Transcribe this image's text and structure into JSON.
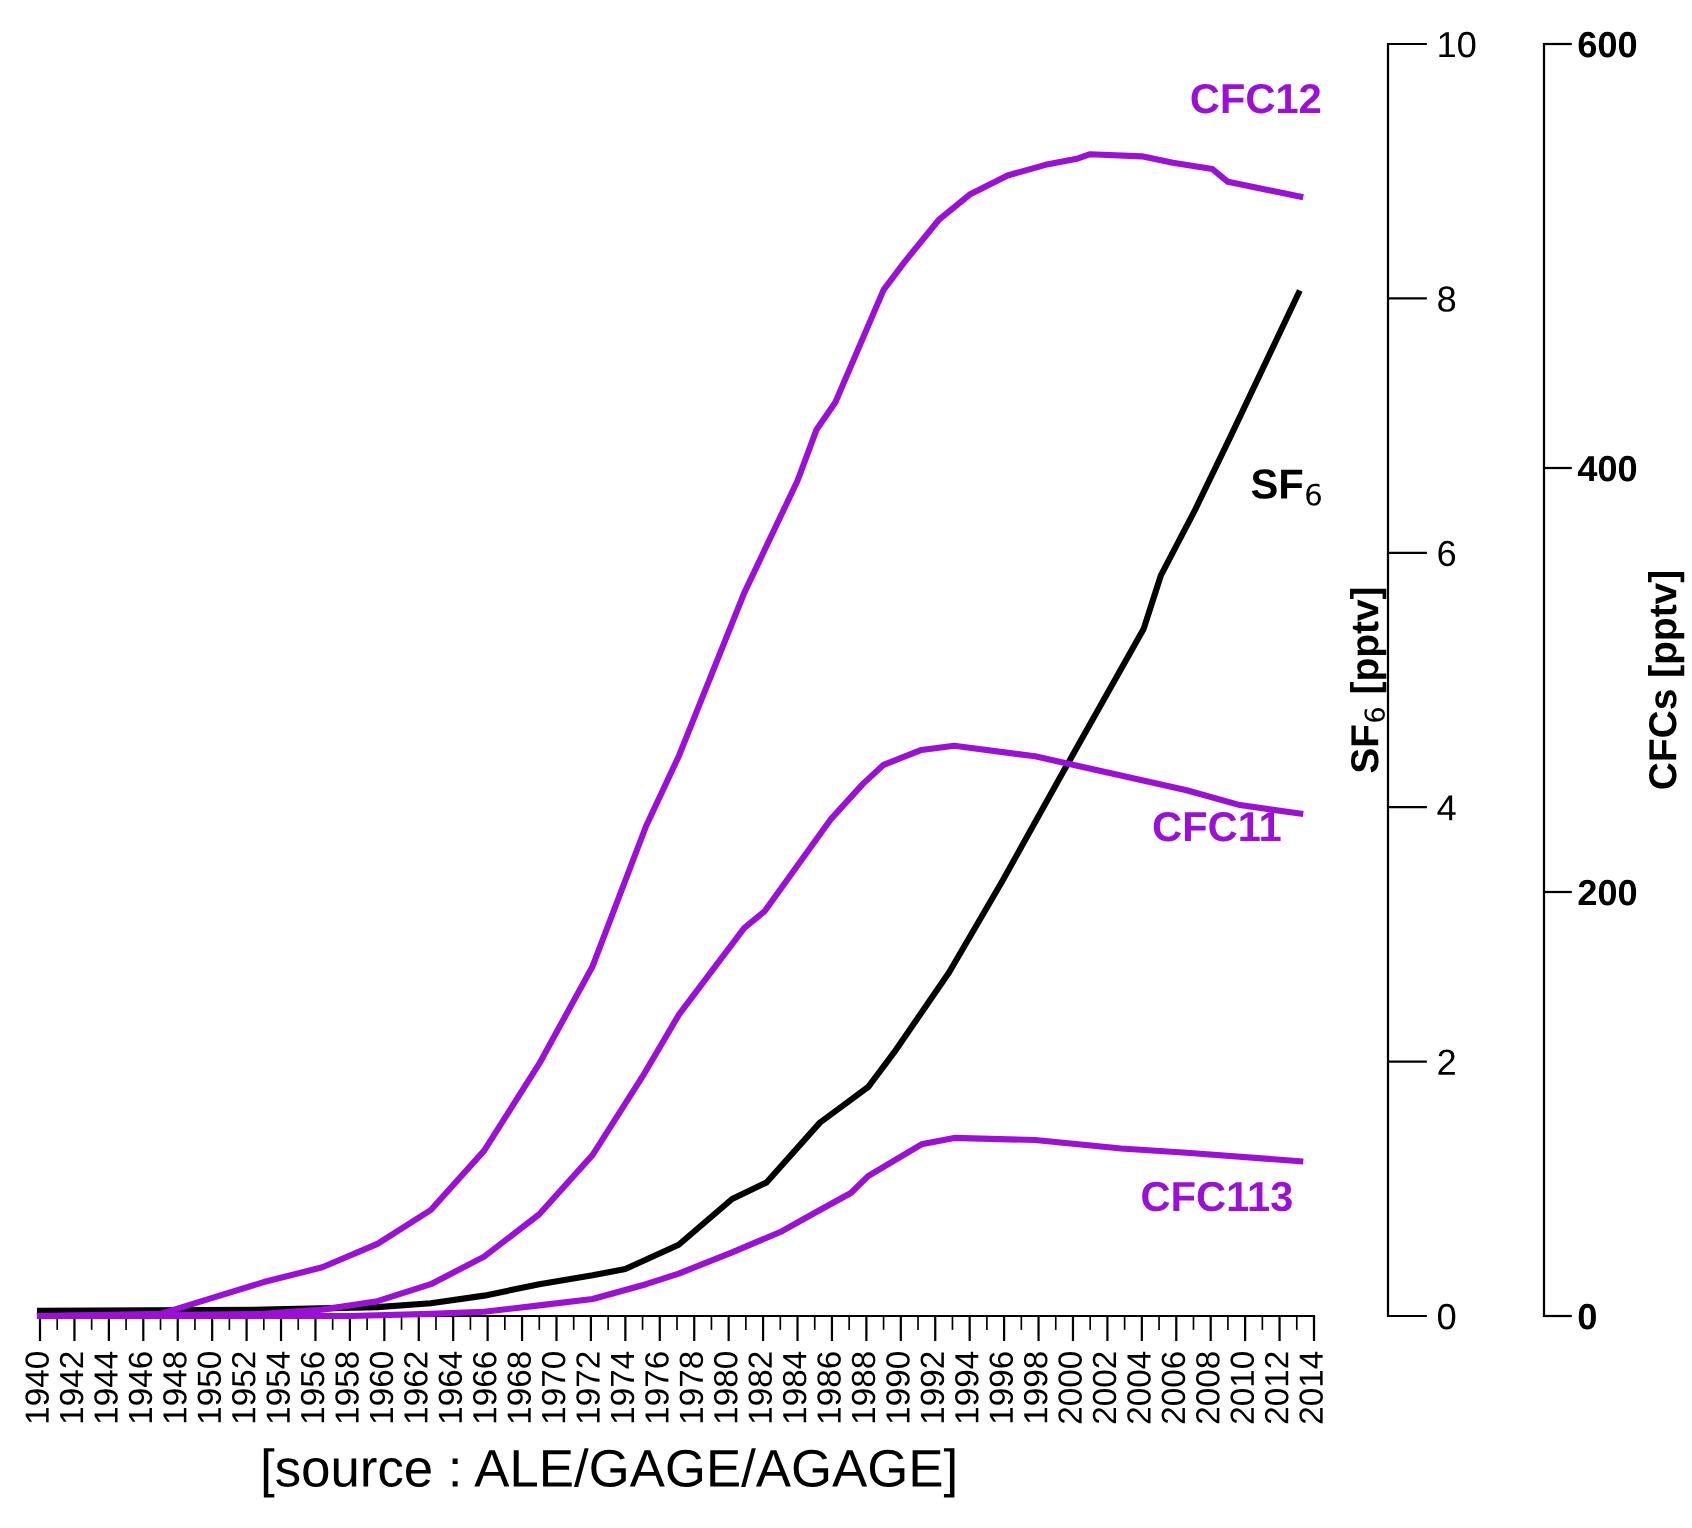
{
  "chart_data": {
    "type": "line",
    "ylabel": "SF$_{6}$ [pptv]",
    "y2label": "CFCs [pptv]",
    "annotations": [
      "[source : ALE/GAGE/AGAGE]"
    ],
    "xlim": [
      1940,
      2014
    ],
    "xticks": [
      1940,
      {
        "value": 1941,
        "label": null
      },
      1942,
      {
        "value": 1943,
        "label": null
      },
      1944,
      {
        "value": 1945,
        "label": null
      },
      1946,
      {
        "value": 1947,
        "label": null
      },
      1948,
      {
        "value": 1949,
        "label": null
      },
      1950,
      {
        "value": 1951,
        "label": null
      },
      1952,
      {
        "value": 1953,
        "label": null
      },
      1954,
      {
        "value": 1955,
        "label": null
      },
      1956,
      {
        "value": 1957,
        "label": null
      },
      1958,
      {
        "value": 1959,
        "label": null
      },
      1960,
      {
        "value": 1961,
        "label": null
      },
      1962,
      {
        "value": 1963,
        "label": null
      },
      1964,
      {
        "value": 1965,
        "label": null
      },
      1966,
      {
        "value": 1967,
        "label": null
      },
      1968,
      {
        "value": 1969,
        "label": null
      },
      1970,
      {
        "value": 1971,
        "label": null
      },
      1972,
      {
        "value": 1973,
        "label": null
      },
      1974,
      {
        "value": 1975,
        "label": null
      },
      1976,
      {
        "value": 1977,
        "label": null
      },
      1978,
      {
        "value": 1979,
        "label": null
      },
      1980,
      {
        "value": 1981,
        "label": null
      },
      1982,
      {
        "value": 1983,
        "label": null
      },
      1984,
      {
        "value": 1985,
        "label": null
      },
      1986,
      {
        "value": 1987,
        "label": null
      },
      1988,
      {
        "value": 1989,
        "label": null
      },
      1990,
      {
        "value": 1991,
        "label": null
      },
      1992,
      {
        "value": 1993,
        "label": null
      },
      1994,
      {
        "value": 1995,
        "label": null
      },
      1996,
      {
        "value": 1997,
        "label": null
      },
      1998,
      {
        "value": 1999,
        "label": null
      },
      2000,
      {
        "value": 2001,
        "label": null
      },
      2002,
      {
        "value": 2003,
        "label": null
      },
      2004,
      {
        "value": 2005,
        "label": null
      },
      2006,
      {
        "value": 2007,
        "label": null
      },
      2008,
      {
        "value": 2009,
        "label": null
      },
      2010,
      {
        "value": 2011,
        "label": null
      },
      2012,
      {
        "value": 2013,
        "label": null
      },
      2014
    ],
    "ylim": [
      0,
      10
    ],
    "yticks": [
      0,
      2,
      4,
      6,
      8,
      10
    ],
    "y2lim": [
      0,
      600
    ],
    "y2ticks": [
      0,
      200,
      400,
      600
    ],
    "grid": false,
    "legend": false,
    "series": [
      {
        "name": "CFC12",
        "color": "#9a10d4",
        "axis": "y2",
        "x": [
          1940,
          1947,
          1950.2,
          1953,
          1956.4,
          1959.6,
          1962.7,
          1965.8,
          1969,
          1972.1,
          1975.2,
          1977.1,
          1980.9,
          1984,
          1985.1,
          1986.2,
          1989,
          1990.2,
          1992.2,
          1994,
          1996.2,
          1998.4,
          2000.3,
          2001,
          2004,
          2005.8,
          2008.1,
          2009,
          2013.2
        ],
        "values": [
          0,
          1,
          9,
          16,
          23,
          34,
          50,
          78,
          119,
          165,
          231,
          264,
          341,
          394,
          418,
          431,
          484,
          497,
          517,
          529,
          538,
          543,
          546,
          548,
          547,
          544,
          541,
          535,
          528
        ]
      },
      {
        "name": "SF$_{6}$",
        "color": "#000000",
        "axis": "y",
        "x": [
          1940,
          1953,
          1959.6,
          1962.7,
          1965.8,
          1969,
          1972.1,
          1974,
          1977.1,
          1980.2,
          1982.2,
          1985.3,
          1986.5,
          1988.1,
          1989.6,
          1992.8,
          1995.9,
          1999.4,
          2004.1,
          2005.1,
          2007.1,
          2009.1,
          2013.1
        ],
        "values": [
          0.04,
          0.05,
          0.07,
          0.1,
          0.16,
          0.25,
          0.32,
          0.37,
          0.56,
          0.92,
          1.05,
          1.52,
          1.64,
          1.8,
          2.07,
          2.7,
          3.42,
          4.27,
          5.4,
          5.82,
          6.34,
          6.9,
          8.04
        ]
      },
      {
        "name": "CFC11",
        "color": "#9a10d4",
        "axis": "y2",
        "x": [
          1940,
          1953,
          1956.4,
          1959.6,
          1962.7,
          1965.8,
          1969,
          1972.1,
          1975,
          1977.1,
          1980.9,
          1982.1,
          1985.9,
          1987.8,
          1989,
          1991.2,
          1993.1,
          1997.8,
          2002.2,
          2006.6,
          2009.7,
          2013.2
        ],
        "values": [
          0,
          1,
          3,
          7,
          15,
          28,
          48,
          76,
          113,
          142,
          183,
          191,
          234,
          251,
          260,
          267,
          269,
          264,
          256,
          248,
          241,
          237
        ]
      },
      {
        "name": "CFC113",
        "color": "#9a10d4",
        "axis": "y2",
        "x": [
          1940,
          1958,
          1962.7,
          1965.8,
          1969,
          1972.1,
          1975.2,
          1977.1,
          1980.2,
          1983.1,
          1985.3,
          1987.1,
          1988.1,
          1991.2,
          1993.1,
          1997.8,
          2002.8,
          2006.6,
          2013.2
        ],
        "values": [
          0,
          0,
          1,
          2,
          5,
          8,
          15,
          20,
          30,
          40,
          50,
          58,
          66,
          81,
          84,
          83,
          79,
          77,
          73
        ]
      }
    ]
  }
}
